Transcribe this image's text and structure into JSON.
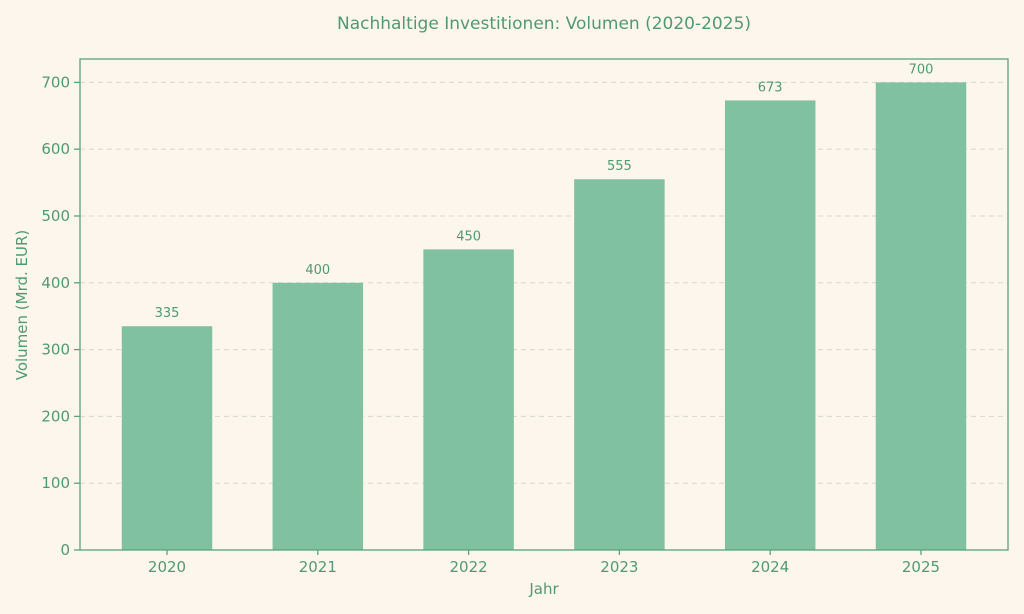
{
  "chart_data": {
    "type": "bar",
    "title": "Nachhaltige Investitionen: Volumen (2020-2025)",
    "xlabel": "Jahr",
    "ylabel": "Volumen (Mrd. EUR)",
    "categories": [
      "2020",
      "2021",
      "2022",
      "2023",
      "2024",
      "2025"
    ],
    "values": [
      335,
      400,
      450,
      555,
      673,
      700
    ],
    "data_labels": [
      "335",
      "400",
      "450",
      "555",
      "673",
      "700"
    ],
    "ylim": [
      0,
      735
    ],
    "yticks": [
      0,
      100,
      200,
      300,
      400,
      500,
      600,
      700
    ],
    "grid": "horizontal dashed",
    "legend": "none",
    "colors": {
      "bar": "#80c1a1",
      "text": "#4f9a70",
      "axis": "#5aa47c",
      "grid": "#d3d9c9",
      "background": "#fdf6ed"
    }
  }
}
